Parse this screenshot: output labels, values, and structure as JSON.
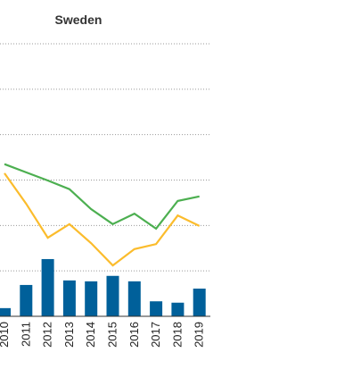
{
  "chart_data": {
    "type": "bar-line",
    "title": "Sweden",
    "categories": [
      "2010",
      "2011",
      "2012",
      "2013",
      "2014",
      "2015",
      "2016",
      "2017",
      "2018",
      "2019"
    ],
    "ylim": [
      0,
      6
    ],
    "yticks": [
      0,
      1,
      2,
      3,
      4,
      5,
      6
    ],
    "grid": true,
    "series": [
      {
        "type": "bar",
        "color": "#00609a",
        "values": [
          0.18,
          0.69,
          1.26,
          0.79,
          0.77,
          0.89,
          0.77,
          0.33,
          0.3,
          0.61
        ]
      },
      {
        "type": "line",
        "color": "#4caf50",
        "values": [
          3.35,
          3.17,
          2.99,
          2.8,
          2.36,
          2.03,
          2.26,
          1.93,
          2.54,
          2.64
        ]
      },
      {
        "type": "line",
        "color": "#fbbc2c",
        "values": [
          3.15,
          2.48,
          1.73,
          2.03,
          1.61,
          1.12,
          1.48,
          1.59,
          2.22,
          1.99
        ]
      }
    ]
  }
}
